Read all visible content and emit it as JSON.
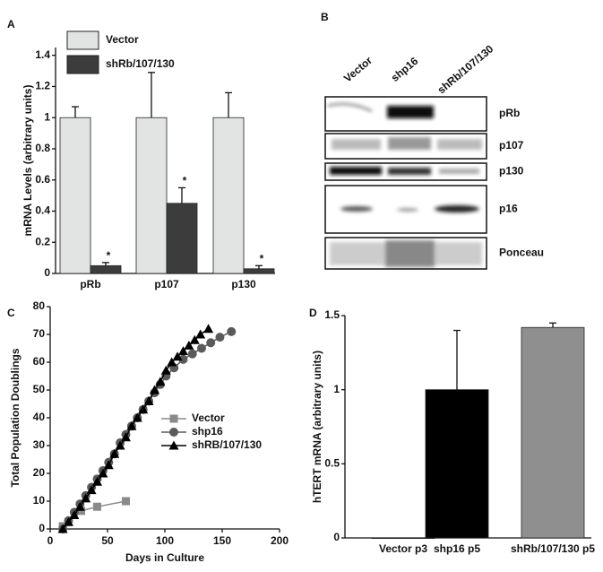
{
  "chart_data": [
    {
      "type": "bar",
      "label": "A",
      "ylabel": "mRNA Levels (arbitrary units)",
      "categories": [
        "pRb",
        "p107",
        "p130"
      ],
      "series": [
        {
          "name": "Vector",
          "color": "#e2e4e4",
          "values": [
            1,
            1,
            1
          ],
          "errors": [
            0.07,
            0.29,
            0.16
          ]
        },
        {
          "name": "shRb/107/130",
          "color": "#3c3c3c",
          "values": [
            0.05,
            0.45,
            0.03
          ],
          "errors": [
            0.02,
            0.1,
            0.02
          ],
          "annotations": [
            "*",
            "*",
            "*"
          ]
        }
      ],
      "ylim": [
        0,
        1.45
      ],
      "yticks": [
        0,
        0.2,
        0.4,
        0.6,
        0.8,
        1,
        1.2,
        1.4
      ],
      "legend": "top-left"
    },
    {
      "type": "line",
      "label": "C",
      "xlabel": "Days in Culture",
      "ylabel": "Total Population Doublings",
      "series": [
        {
          "name": "Vector",
          "color": "#8a8a8a",
          "marker": "square",
          "x": [
            11,
            27,
            41,
            66
          ],
          "values": [
            1,
            6.5,
            8,
            10
          ]
        },
        {
          "name": "shp16",
          "color": "#5a5a5a",
          "marker": "circle",
          "x": [
            11,
            16,
            21,
            26,
            31,
            36,
            41,
            46,
            51,
            56,
            61,
            66,
            71,
            76,
            81,
            86,
            91,
            96,
            101,
            108,
            116,
            124,
            132,
            140,
            148,
            158
          ],
          "values": [
            0,
            3,
            6,
            9,
            12,
            15,
            18,
            21,
            24,
            27,
            31,
            34,
            37,
            40,
            43,
            46,
            49,
            52,
            55,
            58,
            61,
            63,
            65,
            67,
            69,
            71
          ]
        },
        {
          "name": "shRB/107/130",
          "color": "#000000",
          "marker": "triangle",
          "x": [
            11,
            16,
            21,
            26,
            31,
            36,
            41,
            46,
            51,
            56,
            61,
            66,
            71,
            76,
            81,
            86,
            91,
            96,
            101,
            106,
            111,
            116,
            121,
            126,
            131,
            138
          ],
          "values": [
            0,
            2.5,
            5,
            8,
            11,
            14,
            17,
            20,
            23,
            27,
            30,
            33,
            37,
            40,
            43,
            46,
            50,
            53,
            57,
            60,
            62,
            64,
            66,
            68,
            70,
            72
          ]
        }
      ],
      "xlim": [
        0,
        200
      ],
      "xticks": [
        0,
        50,
        100,
        150,
        200
      ],
      "ylim": [
        0,
        80
      ],
      "yticks": [
        0,
        10,
        20,
        30,
        40,
        50,
        60,
        70,
        80
      ],
      "legend": "center"
    },
    {
      "type": "bar",
      "label": "D",
      "ylabel": "hTERT mRNA (arbitrary units)",
      "categories": [
        "Vector p3",
        "shp16 p5",
        "shRb/107/130 p5"
      ],
      "values": [
        0,
        1,
        1.42
      ],
      "errors": [
        0,
        0.4,
        0.03
      ],
      "colors": [
        "#000000",
        "#000000",
        "#8f8f8f"
      ],
      "ylim": [
        0,
        1.5
      ],
      "yticks": [
        0,
        0.5,
        1,
        1.5
      ]
    }
  ],
  "blot": {
    "label": "B",
    "lanes": [
      "Vector",
      "shp16",
      "shRb/107/130"
    ],
    "rows": [
      "pRb",
      "p107",
      "p130",
      "p16",
      "Ponceau"
    ]
  }
}
